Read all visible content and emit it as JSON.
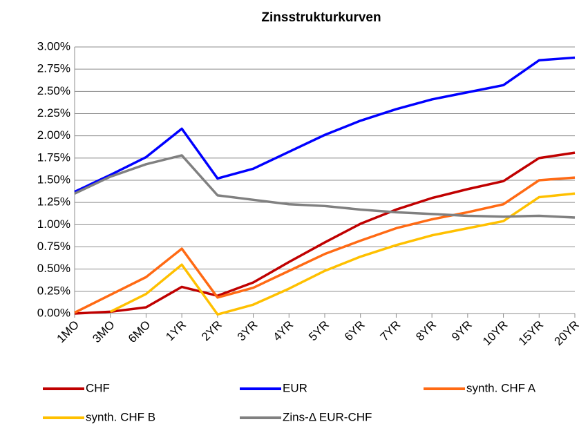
{
  "chart_data": {
    "type": "line",
    "title": "Zinsstrukturkurven",
    "categories": [
      "1MO",
      "3MO",
      "6MO",
      "1YR",
      "2YR",
      "3YR",
      "4YR",
      "5YR",
      "6YR",
      "7YR",
      "8YR",
      "9YR",
      "10YR",
      "15YR",
      "20YR"
    ],
    "series": [
      {
        "name": "CHF",
        "color": "#c00000",
        "values": [
          0.0,
          0.02,
          0.07,
          0.3,
          0.2,
          0.35,
          0.58,
          0.8,
          1.01,
          1.17,
          1.3,
          1.4,
          1.49,
          1.75,
          1.81
        ]
      },
      {
        "name": "EUR",
        "color": "#0000ff",
        "values": [
          1.37,
          1.56,
          1.76,
          2.08,
          1.52,
          1.63,
          1.82,
          2.01,
          2.17,
          2.3,
          2.41,
          2.49,
          2.57,
          2.85,
          2.88
        ]
      },
      {
        "name": "synth. CHF A",
        "color": "#ff6a14",
        "values": [
          0.01,
          0.21,
          0.41,
          0.73,
          0.18,
          0.29,
          0.48,
          0.67,
          0.82,
          0.96,
          1.06,
          1.14,
          1.23,
          1.5,
          1.53
        ]
      },
      {
        "name": "synth. CHF B",
        "color": "#ffc000",
        "values": [
          null,
          0.02,
          0.22,
          0.55,
          -0.01,
          0.1,
          0.28,
          0.48,
          0.64,
          0.77,
          0.88,
          0.96,
          1.04,
          1.31,
          1.35
        ]
      },
      {
        "name": "Zins-Δ EUR-CHF",
        "color": "#808080",
        "values": [
          1.35,
          1.54,
          1.68,
          1.78,
          1.33,
          1.28,
          1.23,
          1.21,
          1.17,
          1.14,
          1.12,
          1.1,
          1.09,
          1.1,
          1.08
        ]
      }
    ],
    "ylim": [
      0,
      3
    ],
    "yticks": [
      {
        "value": 0,
        "label": "0.00%"
      },
      {
        "value": 0.25,
        "label": "0.25%"
      },
      {
        "value": 0.5,
        "label": "0.50%"
      },
      {
        "value": 0.75,
        "label": "0.75%"
      },
      {
        "value": 1,
        "label": "1.00%"
      },
      {
        "value": 1.25,
        "label": "1.25%"
      },
      {
        "value": 1.5,
        "label": "1.50%"
      },
      {
        "value": 1.75,
        "label": "1.75%"
      },
      {
        "value": 2,
        "label": "2.00%"
      },
      {
        "value": 2.25,
        "label": "2.25%"
      },
      {
        "value": 2.5,
        "label": "2.50%"
      },
      {
        "value": 2.75,
        "label": "2.75%"
      },
      {
        "value": 3,
        "label": "3.00%"
      }
    ],
    "grid": true,
    "legend": "bottom"
  }
}
